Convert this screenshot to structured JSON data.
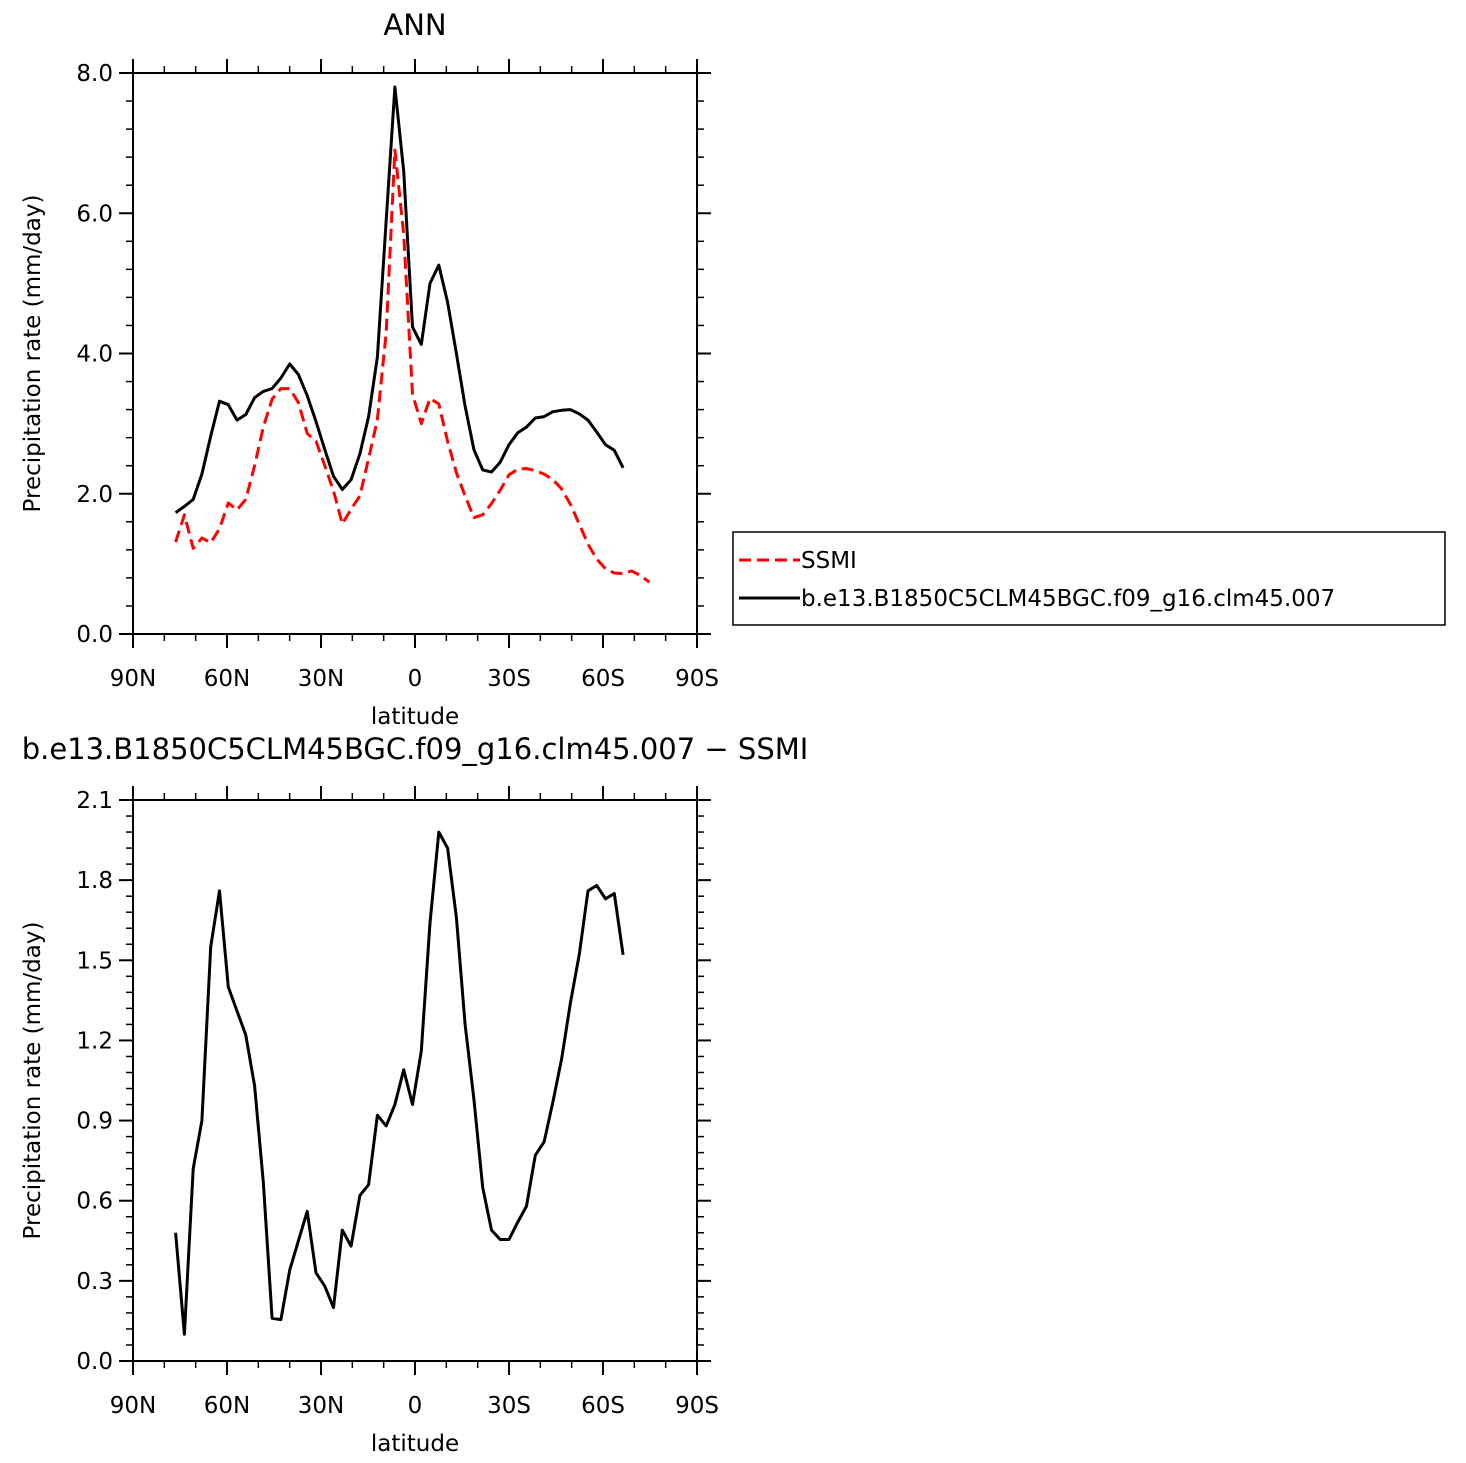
{
  "chart_data": [
    {
      "type": "line",
      "title": "ANN",
      "xlabel": "latitude",
      "ylabel": "Precipitation rate (mm/day)",
      "xlim": [
        90,
        -90
      ],
      "ylim": [
        0,
        8
      ],
      "x_ticks": [
        90,
        60,
        30,
        0,
        -30,
        -60,
        -90
      ],
      "x_tick_labels": [
        "90N",
        "60N",
        "30N",
        "0",
        "30S",
        "60S",
        "90S"
      ],
      "y_ticks": [
        0,
        2,
        4,
        6,
        8
      ],
      "y_tick_labels": [
        "0.0",
        "2.0",
        "4.0",
        "6.0",
        "8.0"
      ],
      "legend_position": "right",
      "series": [
        {
          "name": "SSMI",
          "color": "#ff0000",
          "dash": "dashed",
          "points": [
            [
              76.4,
              1.31
            ],
            [
              73.6,
              1.7
            ],
            [
              70.8,
              1.22
            ],
            [
              68,
              1.37
            ],
            [
              65.2,
              1.3
            ],
            [
              62.4,
              1.5
            ],
            [
              59.6,
              1.87
            ],
            [
              56.8,
              1.77
            ],
            [
              54,
              1.92
            ],
            [
              51.2,
              2.4
            ],
            [
              48.4,
              2.95
            ],
            [
              45.6,
              3.35
            ],
            [
              42.8,
              3.5
            ],
            [
              40,
              3.5
            ],
            [
              37.2,
              3.3
            ],
            [
              34.4,
              2.86
            ],
            [
              31.6,
              2.75
            ],
            [
              28.8,
              2.4
            ],
            [
              26,
              2.04
            ],
            [
              23.2,
              1.57
            ],
            [
              20.4,
              1.78
            ],
            [
              17.6,
              1.97
            ],
            [
              14.8,
              2.5
            ],
            [
              12,
              3.06
            ],
            [
              9.2,
              4.3
            ],
            [
              6.4,
              6.9
            ],
            [
              3.6,
              5.7
            ],
            [
              0.8,
              3.42
            ],
            [
              -2,
              3.0
            ],
            [
              -4.8,
              3.36
            ],
            [
              -7.6,
              3.28
            ],
            [
              -10.4,
              2.75
            ],
            [
              -13.2,
              2.3
            ],
            [
              -16,
              1.97
            ],
            [
              -18.8,
              1.66
            ],
            [
              -21.6,
              1.7
            ],
            [
              -24.4,
              1.86
            ],
            [
              -27.2,
              2.05
            ],
            [
              -30,
              2.27
            ],
            [
              -32.8,
              2.35
            ],
            [
              -35.6,
              2.36
            ],
            [
              -38.4,
              2.33
            ],
            [
              -41.2,
              2.28
            ],
            [
              -44,
              2.2
            ],
            [
              -46.8,
              2.07
            ],
            [
              -49.6,
              1.85
            ],
            [
              -52.4,
              1.57
            ],
            [
              -55.2,
              1.28
            ],
            [
              -58,
              1.07
            ],
            [
              -60.8,
              0.93
            ],
            [
              -63.6,
              0.87
            ],
            [
              -66.4,
              0.86
            ],
            [
              -69.2,
              0.9
            ],
            [
              -72,
              0.83
            ],
            [
              -74.8,
              0.74
            ]
          ]
        },
        {
          "name": "b.e13.B1850C5CLM45BGC.f09_g16.clm45.007",
          "color": "#000000",
          "dash": "solid",
          "points": [
            [
              76.4,
              1.73
            ],
            [
              73.6,
              1.82
            ],
            [
              70.8,
              1.92
            ],
            [
              68,
              2.28
            ],
            [
              65.2,
              2.82
            ],
            [
              62.4,
              3.32
            ],
            [
              59.6,
              3.27
            ],
            [
              56.8,
              3.05
            ],
            [
              54,
              3.13
            ],
            [
              51.2,
              3.37
            ],
            [
              48.4,
              3.46
            ],
            [
              45.6,
              3.5
            ],
            [
              42.8,
              3.65
            ],
            [
              40,
              3.85
            ],
            [
              37.2,
              3.7
            ],
            [
              34.4,
              3.4
            ],
            [
              31.6,
              3.03
            ],
            [
              28.8,
              2.63
            ],
            [
              26,
              2.25
            ],
            [
              23.2,
              2.06
            ],
            [
              20.4,
              2.2
            ],
            [
              17.6,
              2.57
            ],
            [
              14.8,
              3.1
            ],
            [
              12,
              3.95
            ],
            [
              9.2,
              5.9
            ],
            [
              6.4,
              7.8
            ],
            [
              3.6,
              6.6
            ],
            [
              0.8,
              4.38
            ],
            [
              -2,
              4.13
            ],
            [
              -4.8,
              5.0
            ],
            [
              -7.6,
              5.26
            ],
            [
              -10.4,
              4.73
            ],
            [
              -13.2,
              4.0
            ],
            [
              -16,
              3.25
            ],
            [
              -18.8,
              2.63
            ],
            [
              -21.6,
              2.34
            ],
            [
              -24.4,
              2.31
            ],
            [
              -27.2,
              2.45
            ],
            [
              -30,
              2.7
            ],
            [
              -32.8,
              2.87
            ],
            [
              -35.6,
              2.95
            ],
            [
              -38.4,
              3.08
            ],
            [
              -41.2,
              3.1
            ],
            [
              -44,
              3.17
            ],
            [
              -46.8,
              3.19
            ],
            [
              -49.6,
              3.2
            ],
            [
              -52.4,
              3.14
            ],
            [
              -55.2,
              3.05
            ],
            [
              -58,
              2.88
            ],
            [
              -60.8,
              2.7
            ],
            [
              -63.6,
              2.62
            ],
            [
              -66.4,
              2.37
            ]
          ]
        }
      ]
    },
    {
      "type": "line",
      "title": "b.e13.B1850C5CLM45BGC.f09_g16.clm45.007 − SSMI",
      "xlabel": "latitude",
      "ylabel": "Precipitation rate (mm/day)",
      "xlim": [
        90,
        -90
      ],
      "ylim": [
        0,
        2.1
      ],
      "x_ticks": [
        90,
        60,
        30,
        0,
        -30,
        -60,
        -90
      ],
      "x_tick_labels": [
        "90N",
        "60N",
        "30N",
        "0",
        "30S",
        "60S",
        "90S"
      ],
      "y_ticks": [
        0,
        0.3,
        0.6,
        0.9,
        1.2,
        1.5,
        1.8,
        2.1
      ],
      "y_tick_labels": [
        "0.0",
        "0.3",
        "0.6",
        "0.9",
        "1.2",
        "1.5",
        "1.8",
        "2.1"
      ],
      "series": [
        {
          "color": "#000000",
          "dash": "solid",
          "points": [
            [
              76.4,
              0.48
            ],
            [
              73.6,
              0.1
            ],
            [
              70.8,
              0.72
            ],
            [
              68,
              0.9
            ],
            [
              65.2,
              1.55
            ],
            [
              62.4,
              1.76
            ],
            [
              59.6,
              1.4
            ],
            [
              56.8,
              1.31
            ],
            [
              54,
              1.22
            ],
            [
              51.2,
              1.03
            ],
            [
              48.4,
              0.67
            ],
            [
              45.6,
              0.16
            ],
            [
              42.8,
              0.155
            ],
            [
              40,
              0.34
            ],
            [
              37.2,
              0.45
            ],
            [
              34.4,
              0.56
            ],
            [
              31.6,
              0.33
            ],
            [
              28.8,
              0.28
            ],
            [
              26,
              0.2
            ],
            [
              23.2,
              0.49
            ],
            [
              20.4,
              0.43
            ],
            [
              17.6,
              0.62
            ],
            [
              14.8,
              0.66
            ],
            [
              12,
              0.92
            ],
            [
              9.2,
              0.88
            ],
            [
              6.4,
              0.96
            ],
            [
              3.6,
              1.09
            ],
            [
              0.8,
              0.96
            ],
            [
              -2,
              1.16
            ],
            [
              -4.8,
              1.64
            ],
            [
              -7.6,
              1.98
            ],
            [
              -10.4,
              1.92
            ],
            [
              -13.2,
              1.66
            ],
            [
              -16,
              1.26
            ],
            [
              -18.8,
              0.98
            ],
            [
              -21.6,
              0.65
            ],
            [
              -24.4,
              0.49
            ],
            [
              -27.2,
              0.455
            ],
            [
              -30,
              0.455
            ],
            [
              -32.8,
              0.52
            ],
            [
              -35.6,
              0.58
            ],
            [
              -38.4,
              0.77
            ],
            [
              -41.2,
              0.82
            ],
            [
              -44,
              0.97
            ],
            [
              -46.8,
              1.13
            ],
            [
              -49.6,
              1.34
            ],
            [
              -52.4,
              1.52
            ],
            [
              -55.2,
              1.76
            ],
            [
              -58,
              1.78
            ],
            [
              -60.8,
              1.73
            ],
            [
              -63.6,
              1.75
            ],
            [
              -66.4,
              1.52
            ]
          ]
        }
      ]
    }
  ]
}
